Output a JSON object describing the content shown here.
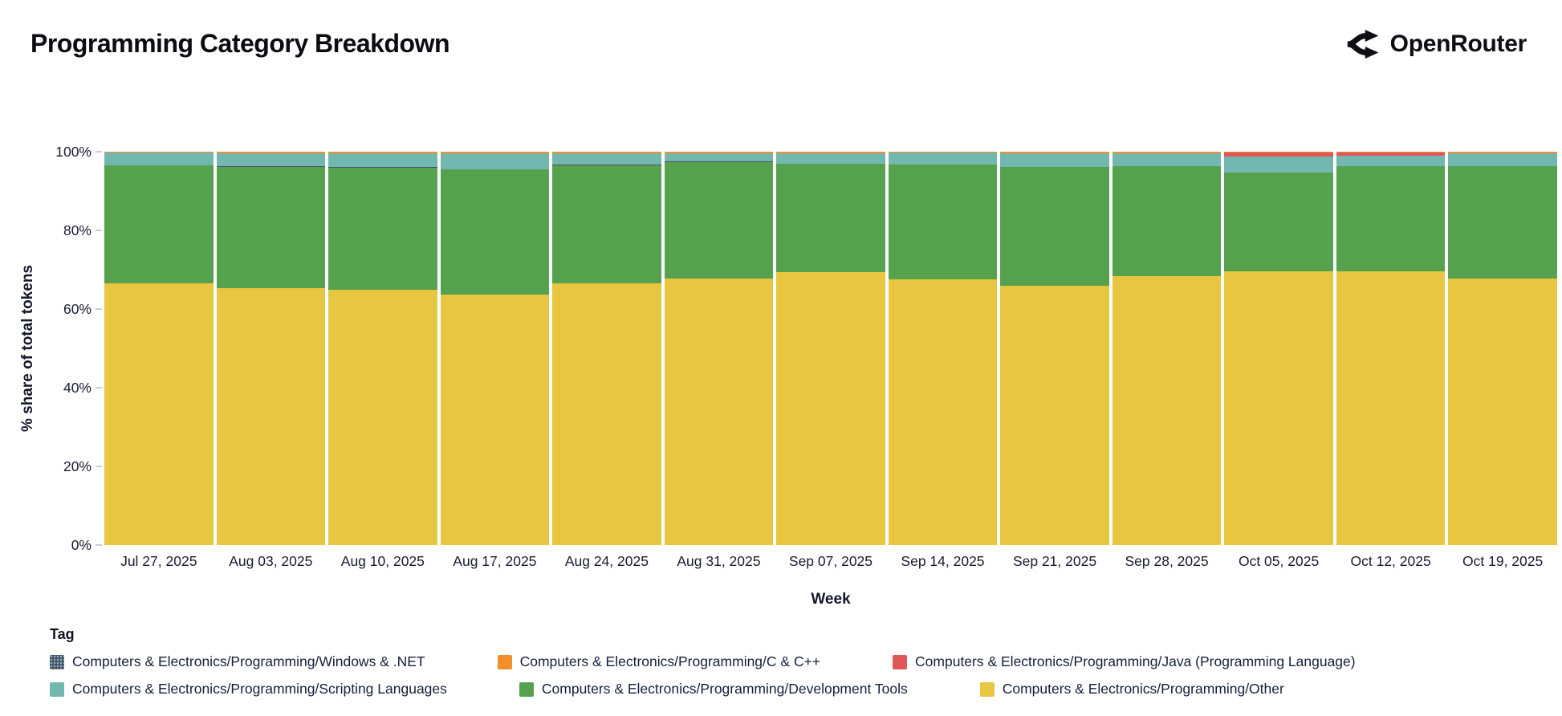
{
  "header": {
    "title": "Programming Category Breakdown",
    "brand": "OpenRouter"
  },
  "chart_data": {
    "type": "bar",
    "variant": "stacked-100-percent",
    "title": "Programming Category Breakdown",
    "xlabel": "Week",
    "ylabel": "% share of total tokens",
    "ylim": [
      0,
      100
    ],
    "yticks": [
      "0%",
      "20%",
      "40%",
      "60%",
      "80%",
      "100%"
    ],
    "grid": false,
    "x": [
      "Jul 27, 2025",
      "Aug 03, 2025",
      "Aug 10, 2025",
      "Aug 17, 2025",
      "Aug 24, 2025",
      "Aug 31, 2025",
      "Sep 07, 2025",
      "Sep 14, 2025",
      "Sep 21, 2025",
      "Sep 28, 2025",
      "Oct 05, 2025",
      "Oct 12, 2025",
      "Oct 19, 2025"
    ],
    "series": [
      {
        "name": "Computers & Electronics/Programming/Other",
        "color": "#e9c63f",
        "values": [
          66.5,
          65.4,
          64.8,
          63.6,
          66.5,
          67.8,
          69.4,
          67.5,
          65.9,
          68.3,
          69.5,
          69.6,
          67.8
        ]
      },
      {
        "name": "Computers & Electronics/Programming/Development Tools",
        "color": "#55a14e",
        "values": [
          30.0,
          30.8,
          31.2,
          31.9,
          30.1,
          29.6,
          27.5,
          29.2,
          30.2,
          28.0,
          25.2,
          26.7,
          28.5
        ]
      },
      {
        "name": "Computers & Electronics/Programming/Windows & .NET",
        "color": "#44566a",
        "pattern": "dots",
        "values": [
          0.1,
          0.1,
          0.1,
          0.1,
          0.1,
          0.1,
          0.1,
          0.1,
          0.1,
          0.1,
          0.1,
          0.1,
          0.1
        ]
      },
      {
        "name": "Computers & Electronics/Programming/Scripting Languages",
        "color": "#73b7b1",
        "values": [
          3.1,
          3.4,
          3.6,
          4.1,
          3.0,
          2.2,
          2.7,
          2.9,
          3.5,
          3.3,
          3.9,
          2.5,
          3.3
        ]
      },
      {
        "name": "Computers & Electronics/Programming/Java (Programming Language)",
        "color": "#e15759",
        "values": [
          0,
          0,
          0,
          0,
          0,
          0,
          0,
          0,
          0,
          0,
          1.1,
          0.9,
          0
        ]
      },
      {
        "name": "Computers & Electronics/Programming/C & C++",
        "color": "#f28e2b",
        "values": [
          0.3,
          0.3,
          0.3,
          0.3,
          0.3,
          0.3,
          0.3,
          0.3,
          0.3,
          0.3,
          0.2,
          0.2,
          0.3
        ]
      }
    ],
    "legend": {
      "title": "Tag",
      "position": "bottom",
      "rows": [
        [
          "Computers & Electronics/Programming/Windows & .NET",
          "Computers & Electronics/Programming/C & C++",
          "Computers & Electronics/Programming/Java (Programming Language)"
        ],
        [
          "Computers & Electronics/Programming/Scripting Languages",
          "Computers & Electronics/Programming/Development Tools",
          "Computers & Electronics/Programming/Other"
        ]
      ]
    }
  }
}
